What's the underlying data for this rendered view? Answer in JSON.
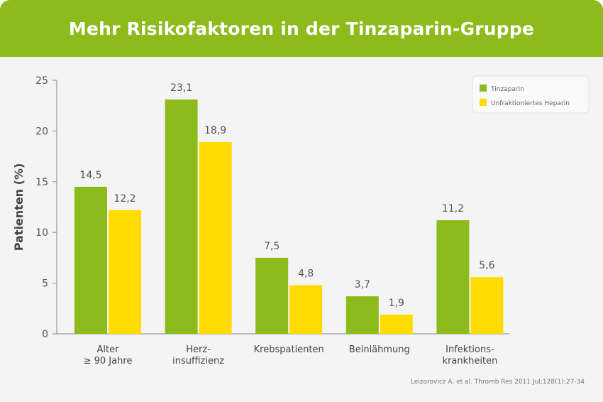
{
  "header": {
    "title": "Mehr Risikofaktoren in der Tinzaparin-Gruppe"
  },
  "colors": {
    "header": "#8dbb1c",
    "tinzaparin": "#8dbb1c",
    "heparin": "#ffdc00"
  },
  "chart_data": {
    "type": "bar",
    "title": "Mehr Risikofaktoren in der Tinzaparin-Gruppe",
    "ylabel": "Patienten (%)",
    "xlabel": "",
    "ylim": [
      0,
      25
    ],
    "yticks": [
      "0",
      "5",
      "10",
      "15",
      "20",
      "25"
    ],
    "categories": [
      [
        "Alter",
        "≥ 90 Jahre"
      ],
      [
        "Herz-",
        "insuffizienz"
      ],
      [
        "Krebspatienten"
      ],
      [
        "Beinlähmung"
      ],
      [
        "Infektions-",
        "krankheiten"
      ]
    ],
    "series": [
      {
        "name": "Tinzaparin",
        "values": [
          14.5,
          23.1,
          7.5,
          3.7,
          11.2
        ],
        "labels": [
          "14,5",
          "23,1",
          "7,5",
          "3,7",
          "11,2"
        ],
        "color": "#8dbb1c"
      },
      {
        "name": "Unfraktioniertes Heparin",
        "values": [
          12.2,
          18.9,
          4.8,
          1.9,
          5.6
        ],
        "labels": [
          "12,2",
          "18,9",
          "4,8",
          "1,9",
          "5,6"
        ],
        "color": "#ffdc00"
      }
    ],
    "legend_position": "top-right",
    "grid": false,
    "source": "Leizorovicz A. et al. Thromb Res 2011 Jul;128(1):27-34"
  }
}
